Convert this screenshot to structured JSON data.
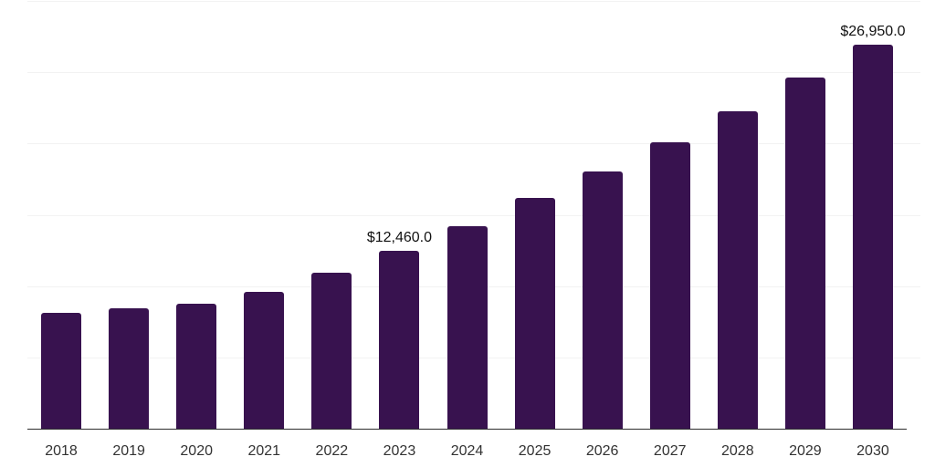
{
  "chart_data": {
    "type": "bar",
    "title": "",
    "xlabel": "",
    "ylabel": "",
    "categories": [
      "2018",
      "2019",
      "2020",
      "2021",
      "2022",
      "2023",
      "2024",
      "2025",
      "2026",
      "2027",
      "2028",
      "2029",
      "2030"
    ],
    "values": [
      8110,
      8450,
      8750,
      9600,
      10910,
      12460,
      14170,
      16180,
      18060,
      20110,
      22240,
      24620,
      26950
    ],
    "annotations": [
      {
        "index": 5,
        "category": "2023",
        "text": "$12,460.0"
      },
      {
        "index": 12,
        "category": "2030",
        "text": "$26,950.0"
      }
    ],
    "ylim": [
      0,
      30000
    ],
    "grid_step": 5000,
    "grid": true,
    "legend": false,
    "colors": {
      "bar": "#38124F",
      "grid_line": "#f2f2f2",
      "axis_line": "#2e2e2e",
      "tick_label": "#333333",
      "annotation_text": "#111111",
      "background": "#ffffff"
    }
  }
}
